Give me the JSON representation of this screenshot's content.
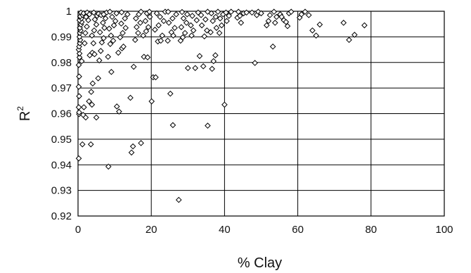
{
  "chart_data": {
    "type": "scatter",
    "xlabel": "% Clay",
    "ylabel": "R",
    "ylabel_sup": "2",
    "xlim": [
      0,
      100
    ],
    "ylim": [
      0.92,
      1
    ],
    "xticks": [
      0,
      20,
      40,
      60,
      80,
      100
    ],
    "xtick_labels": [
      "0",
      "20",
      "40",
      "60",
      "80",
      "100"
    ],
    "yticks": [
      0.92,
      0.93,
      0.94,
      0.95,
      0.96,
      0.97,
      0.98,
      0.99,
      1
    ],
    "ytick_labels": [
      "0.92",
      "0.93",
      "0.94",
      "0.95",
      "0.96",
      "0.97",
      "0.98",
      "0.99",
      "1"
    ],
    "grid": "horizontal and vertical",
    "marker": "open diamond",
    "points": [
      [
        0.2,
        0.9425
      ],
      [
        0.3,
        0.9598
      ],
      [
        0.3,
        0.9605
      ],
      [
        0.2,
        0.9625
      ],
      [
        0.3,
        0.9668
      ],
      [
        0.2,
        0.9705
      ],
      [
        0.3,
        0.9745
      ],
      [
        0.2,
        0.979
      ],
      [
        0.4,
        0.982
      ],
      [
        0.4,
        0.9835
      ],
      [
        0.2,
        0.985
      ],
      [
        0.3,
        0.9862
      ],
      [
        0.5,
        0.9875
      ],
      [
        0.6,
        0.9888
      ],
      [
        0.4,
        0.99
      ],
      [
        0.5,
        0.9915
      ],
      [
        0.7,
        0.9925
      ],
      [
        0.5,
        0.9935
      ],
      [
        0.8,
        0.9948
      ],
      [
        1.0,
        0.9958
      ],
      [
        0.4,
        0.9965
      ],
      [
        0.9,
        0.9972
      ],
      [
        0.6,
        0.998
      ],
      [
        1.1,
        0.9988
      ],
      [
        0.8,
        0.9995
      ],
      [
        1.3,
        0.9985
      ],
      [
        1.5,
        0.9992
      ],
      [
        1.2,
        0.948
      ],
      [
        1.4,
        0.9595
      ],
      [
        2.1,
        0.9585
      ],
      [
        1.6,
        0.9625
      ],
      [
        1.0,
        0.9805
      ],
      [
        1.8,
        0.9875
      ],
      [
        2.0,
        0.9915
      ],
      [
        2.4,
        0.994
      ],
      [
        2.8,
        0.9965
      ],
      [
        2.5,
        0.9995
      ],
      [
        3.1,
        0.9988
      ],
      [
        2.2,
        0.9978
      ],
      [
        3.5,
        0.948
      ],
      [
        3.0,
        0.9648
      ],
      [
        3.8,
        0.9635
      ],
      [
        3.6,
        0.9685
      ],
      [
        4.0,
        0.9718
      ],
      [
        3.2,
        0.9828
      ],
      [
        3.9,
        0.9838
      ],
      [
        4.5,
        0.9832
      ],
      [
        4.2,
        0.9875
      ],
      [
        3.8,
        0.9905
      ],
      [
        4.4,
        0.9925
      ],
      [
        5.0,
        0.9948
      ],
      [
        4.6,
        0.9968
      ],
      [
        5.2,
        0.9982
      ],
      [
        4.3,
        0.9995
      ],
      [
        5.6,
        0.999
      ],
      [
        5.0,
        0.9585
      ],
      [
        5.5,
        0.9738
      ],
      [
        5.8,
        0.9808
      ],
      [
        6.2,
        0.9845
      ],
      [
        6.5,
        0.9878
      ],
      [
        7.0,
        0.9895
      ],
      [
        6.0,
        0.9918
      ],
      [
        7.2,
        0.9935
      ],
      [
        6.8,
        0.9955
      ],
      [
        7.5,
        0.9972
      ],
      [
        6.3,
        0.9985
      ],
      [
        7.8,
        0.9995
      ],
      [
        7.0,
        0.9988
      ],
      [
        8.3,
        0.9393
      ],
      [
        9.1,
        0.9763
      ],
      [
        8.2,
        0.9822
      ],
      [
        8.8,
        0.9872
      ],
      [
        9.6,
        0.9885
      ],
      [
        9.0,
        0.9905
      ],
      [
        8.5,
        0.9932
      ],
      [
        9.8,
        0.9945
      ],
      [
        10.2,
        0.9962
      ],
      [
        9.3,
        0.9978
      ],
      [
        10.5,
        0.9992
      ],
      [
        8.7,
        0.9998
      ],
      [
        10.6,
        0.9628
      ],
      [
        11.2,
        0.9608
      ],
      [
        11.0,
        0.9838
      ],
      [
        12.0,
        0.9855
      ],
      [
        12.4,
        0.9862
      ],
      [
        11.5,
        0.9898
      ],
      [
        12.2,
        0.9915
      ],
      [
        13.0,
        0.9935
      ],
      [
        11.8,
        0.9952
      ],
      [
        12.8,
        0.9972
      ],
      [
        13.5,
        0.9988
      ],
      [
        11.9,
        0.9996
      ],
      [
        14.3,
        0.9662
      ],
      [
        14.6,
        0.9448
      ],
      [
        15.0,
        0.9472
      ],
      [
        15.2,
        0.9783
      ],
      [
        15.6,
        0.9888
      ],
      [
        16.4,
        0.9915
      ],
      [
        16.0,
        0.9938
      ],
      [
        17.0,
        0.9955
      ],
      [
        15.8,
        0.9972
      ],
      [
        16.6,
        0.9988
      ],
      [
        17.2,
        0.9998
      ],
      [
        17.2,
        0.9485
      ],
      [
        18.0,
        0.9822
      ],
      [
        19.0,
        0.982
      ],
      [
        17.8,
        0.9905
      ],
      [
        18.6,
        0.9922
      ],
      [
        19.2,
        0.9938
      ],
      [
        18.4,
        0.9962
      ],
      [
        19.6,
        0.9978
      ],
      [
        18.8,
        0.9992
      ],
      [
        19.5,
        0.9998
      ],
      [
        20.1,
        0.9648
      ],
      [
        20.5,
        0.9742
      ],
      [
        21.2,
        0.9742
      ],
      [
        21.8,
        0.9882
      ],
      [
        22.6,
        0.9885
      ],
      [
        23.0,
        0.9905
      ],
      [
        21.0,
        0.9928
      ],
      [
        22.0,
        0.9945
      ],
      [
        23.4,
        0.9962
      ],
      [
        22.4,
        0.9978
      ],
      [
        21.5,
        0.9992
      ],
      [
        23.8,
        0.9998
      ],
      [
        25.2,
        0.9678
      ],
      [
        25.9,
        0.9555
      ],
      [
        24.5,
        0.9885
      ],
      [
        26.0,
        0.9905
      ],
      [
        25.5,
        0.9918
      ],
      [
        26.4,
        0.9935
      ],
      [
        24.8,
        0.9955
      ],
      [
        25.8,
        0.9972
      ],
      [
        26.8,
        0.9988
      ],
      [
        24.6,
        0.9998
      ],
      [
        27.5,
        0.9263
      ],
      [
        28.0,
        0.9885
      ],
      [
        28.6,
        0.9898
      ],
      [
        29.2,
        0.9915
      ],
      [
        28.2,
        0.9938
      ],
      [
        29.6,
        0.9955
      ],
      [
        28.8,
        0.9972
      ],
      [
        29.8,
        0.9988
      ],
      [
        28.4,
        0.9997
      ],
      [
        30.0,
        0.9778
      ],
      [
        31.0,
        0.9905
      ],
      [
        32.0,
        0.9778
      ],
      [
        31.5,
        0.9925
      ],
      [
        30.8,
        0.9945
      ],
      [
        32.4,
        0.9965
      ],
      [
        31.2,
        0.9982
      ],
      [
        32.8,
        0.9995
      ],
      [
        34.2,
        0.9785
      ],
      [
        33.2,
        0.9825
      ],
      [
        34.5,
        0.9902
      ],
      [
        35.2,
        0.9925
      ],
      [
        33.8,
        0.9945
      ],
      [
        34.8,
        0.9968
      ],
      [
        33.6,
        0.9985
      ],
      [
        35.4,
        0.9998
      ],
      [
        35.4,
        0.9553
      ],
      [
        36.6,
        0.9775
      ],
      [
        37.0,
        0.9805
      ],
      [
        37.5,
        0.9828
      ],
      [
        36.2,
        0.9918
      ],
      [
        37.8,
        0.9935
      ],
      [
        36.8,
        0.9962
      ],
      [
        37.6,
        0.9978
      ],
      [
        36.4,
        0.9992
      ],
      [
        38.6,
        0.9915
      ],
      [
        39.2,
        0.9945
      ],
      [
        38.8,
        0.9972
      ],
      [
        39.6,
        0.9988
      ],
      [
        38.2,
        0.9998
      ],
      [
        40.0,
        0.9635
      ],
      [
        40.6,
        0.9962
      ],
      [
        41.2,
        0.9982
      ],
      [
        40.4,
        0.9995
      ],
      [
        41.8,
        0.9998
      ],
      [
        43.5,
        0.9975
      ],
      [
        44.5,
        0.9955
      ],
      [
        44.2,
        0.9982
      ],
      [
        45.2,
        0.9992
      ],
      [
        43.8,
        0.9998
      ],
      [
        46.0,
        0.9995
      ],
      [
        47.5,
        0.9995
      ],
      [
        48.3,
        0.9798
      ],
      [
        48.8,
        0.9985
      ],
      [
        49.2,
        0.9998
      ],
      [
        50.0,
        0.9992
      ],
      [
        51.5,
        0.9945
      ],
      [
        52.0,
        0.9962
      ],
      [
        52.4,
        0.9985
      ],
      [
        53.2,
        0.9862
      ],
      [
        53.8,
        0.9955
      ],
      [
        54.2,
        0.9978
      ],
      [
        53.5,
        0.9998
      ],
      [
        55.2,
        0.9988
      ],
      [
        55.6,
        0.9978
      ],
      [
        56.2,
        0.9965
      ],
      [
        56.8,
        0.9958
      ],
      [
        57.2,
        0.9942
      ],
      [
        57.6,
        0.9992
      ],
      [
        58.2,
        0.9998
      ],
      [
        60.5,
        0.9975
      ],
      [
        61.0,
        0.9988
      ],
      [
        62.0,
        0.9998
      ],
      [
        63.0,
        0.9985
      ],
      [
        64.0,
        0.9925
      ],
      [
        65.0,
        0.9905
      ],
      [
        66.0,
        0.9948
      ],
      [
        72.5,
        0.9955
      ],
      [
        74.0,
        0.9888
      ],
      [
        75.5,
        0.9908
      ],
      [
        78.2,
        0.9945
      ]
    ]
  }
}
